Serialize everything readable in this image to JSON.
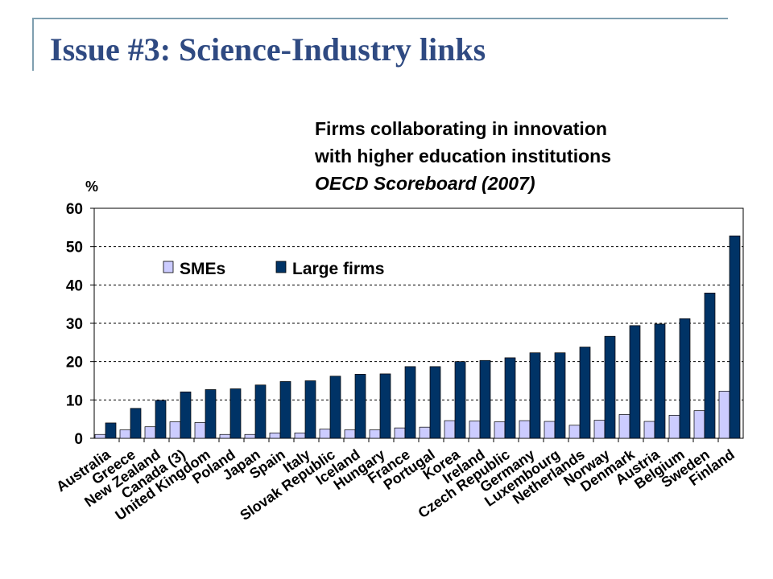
{
  "slide": {
    "title": "Issue #3: Science-Industry links",
    "accent_color": "#2f4a82",
    "frame_color": "#7f9fb0"
  },
  "chart_title": {
    "line1": "Firms collaborating in innovation",
    "line2": "with higher education institutions",
    "line3": "OECD Scoreboard (2007)"
  },
  "chart_data": {
    "type": "bar",
    "ylabel": "%",
    "ylim": [
      0,
      60
    ],
    "yticks": [
      0,
      10,
      20,
      30,
      40,
      50,
      60
    ],
    "grid": "dashed horizontal",
    "legend_position": "top-left",
    "categories": [
      "Australia",
      "Greece",
      "New Zealand",
      "Canada (3)",
      "United Kingdom",
      "Poland",
      "Japan",
      "Spain",
      "Italy",
      "Slovak Republic",
      "Iceland",
      "Hungary",
      "France",
      "Portugal",
      "Korea",
      "Ireland",
      "Czech Republic",
      "Germany",
      "Luxembourg",
      "Netherlands",
      "Norway",
      "Denmark",
      "Austria",
      "Belgium",
      "Sweden",
      "Finland"
    ],
    "series": [
      {
        "name": "SMEs",
        "color": "#ccccff",
        "values": [
          1.0,
          2.2,
          3.0,
          4.3,
          4.1,
          1.0,
          1.0,
          1.4,
          1.4,
          2.4,
          2.2,
          2.2,
          2.7,
          2.9,
          4.6,
          4.5,
          4.3,
          4.6,
          4.4,
          3.4,
          4.7,
          6.2,
          4.4,
          6.0,
          7.2,
          12.3
        ]
      },
      {
        "name": "Large firms",
        "color": "#003366",
        "values": [
          4.0,
          7.8,
          9.9,
          12.1,
          12.7,
          12.9,
          13.9,
          14.8,
          15.0,
          16.2,
          16.7,
          16.8,
          18.7,
          18.7,
          20.0,
          20.3,
          21.0,
          22.3,
          22.3,
          23.8,
          26.6,
          29.4,
          29.8,
          31.2,
          37.9,
          52.8
        ]
      }
    ]
  }
}
